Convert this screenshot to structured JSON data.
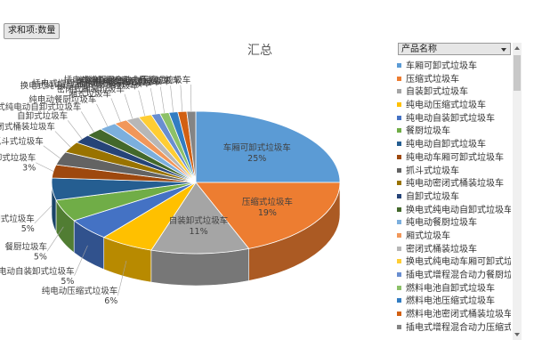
{
  "field_button": "求和项:数量",
  "legend_field": "产品名称",
  "colors": {
    "title": "#595959",
    "label": "#404040"
  },
  "chart_data": {
    "type": "pie",
    "title": "汇总",
    "legend_placement": "right",
    "slices": [
      {
        "name": "车厢可卸式垃圾车",
        "value": 25,
        "label": "25%",
        "color": "#5b9bd5"
      },
      {
        "name": "压缩式垃圾车",
        "value": 19,
        "label": "19%",
        "color": "#ed7d31"
      },
      {
        "name": "自装卸式垃圾车",
        "value": 11,
        "label": "11%",
        "color": "#a5a5a5"
      },
      {
        "name": "纯电动压缩式垃圾车",
        "value": 6,
        "label": "6%",
        "color": "#ffc000"
      },
      {
        "name": "纯电动自装卸式垃圾车",
        "value": 5,
        "label": "5%",
        "color": "#4472c4"
      },
      {
        "name": "餐厨垃圾车",
        "value": 5,
        "label": "5%",
        "color": "#70ad47"
      },
      {
        "name": "纯电动自卸式垃圾车",
        "value": 5,
        "label": "5%",
        "color": "#255e91"
      },
      {
        "name": "纯电动车厢可卸式垃圾车",
        "value": 3,
        "label": "3%",
        "color": "#9e480e"
      },
      {
        "name": "抓斗式垃圾车",
        "value": 3,
        "label": "",
        "color": "#636363"
      },
      {
        "name": "纯电动密闭式桶装垃圾车",
        "value": 2.5,
        "label": "",
        "color": "#997300"
      },
      {
        "name": "自卸式垃圾车",
        "value": 2,
        "label": "",
        "color": "#264478"
      },
      {
        "name": "换电式纯电动自卸式垃圾车",
        "value": 2,
        "label": "",
        "color": "#43682b"
      },
      {
        "name": "纯电动餐厨垃圾车",
        "value": 2,
        "label": "",
        "color": "#7cafdd"
      },
      {
        "name": "厢式垃圾车",
        "value": 1.5,
        "label": "",
        "color": "#f1975a"
      },
      {
        "name": "密闭式桶装垃圾车",
        "value": 1.5,
        "label": "",
        "color": "#b7b7b7"
      },
      {
        "name": "换电式纯电动车厢可卸式垃圾车",
        "value": 1.5,
        "label": "",
        "color": "#ffcd33"
      },
      {
        "name": "插电式增程混合动力餐厨垃圾车",
        "value": 1,
        "label": "",
        "color": "#698ed0"
      },
      {
        "name": "燃料电池自卸式垃圾车",
        "value": 1,
        "label": "",
        "color": "#8cc168"
      },
      {
        "name": "燃料电池压缩式垃圾车",
        "value": 1,
        "label": "",
        "color": "#327dc2"
      },
      {
        "name": "燃料电池密闭式桶装垃圾车",
        "value": 1,
        "label": "",
        "color": "#d26012"
      },
      {
        "name": "插电式增程混合动力压缩式垃圾车",
        "value": 1,
        "label": "",
        "color": "#848484"
      }
    ]
  }
}
